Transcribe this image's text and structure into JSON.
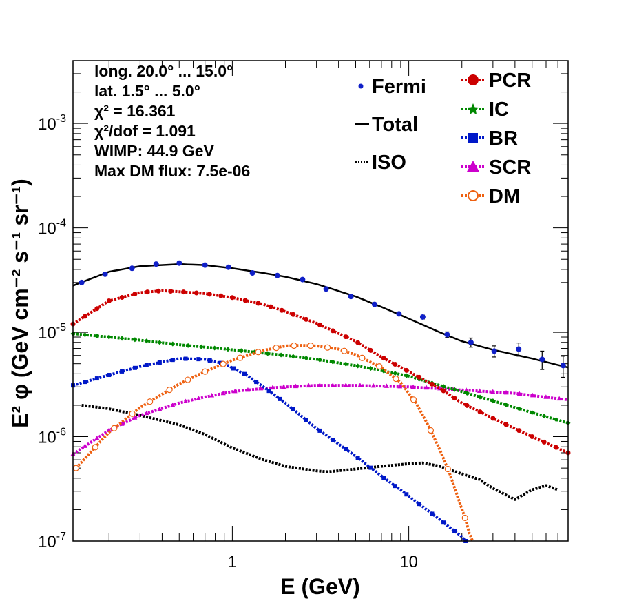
{
  "chart_data": {
    "type": "line",
    "xlabel": "E (GeV)",
    "ylabel": "E² φ (GeV cm⁻² s⁻¹ sr⁻¹)",
    "x_scale": "log",
    "y_scale": "log",
    "xlim": [
      0.125,
      80
    ],
    "ylim": [
      1e-07,
      0.004
    ],
    "x_ticks": [
      {
        "value": 1,
        "label": "1"
      },
      {
        "value": 10,
        "label": "10"
      }
    ],
    "y_ticks": [
      {
        "value": 1e-07,
        "base": "10",
        "exp": "-7"
      },
      {
        "value": 1e-06,
        "base": "10",
        "exp": "-6"
      },
      {
        "value": 1e-05,
        "base": "10",
        "exp": "-5"
      },
      {
        "value": 0.0001,
        "base": "10",
        "exp": "-4"
      },
      {
        "value": 0.001,
        "base": "10",
        "exp": "-3"
      }
    ],
    "annotations": [
      "long. 20.0° ... 15.0°",
      "lat. 1.5° ... 5.0°",
      "χ² = 16.361",
      "χ²/dof = 1.091",
      "WIMP: 44.9 GeV",
      "Max DM flux: 7.5e-06"
    ],
    "legend_left": [
      {
        "label": "Fermi",
        "color": "#1020c8",
        "style": "point"
      },
      {
        "label": "Total",
        "color": "#000000",
        "style": "solid"
      },
      {
        "label": "ISO",
        "color": "#000000",
        "style": "dotted"
      }
    ],
    "legend_right": [
      {
        "label": "PCR",
        "color": "#cc0000",
        "marker": "circle"
      },
      {
        "label": "IC",
        "color": "#008800",
        "marker": "star"
      },
      {
        "label": "BR",
        "color": "#0018c8",
        "marker": "square"
      },
      {
        "label": "SCR",
        "color": "#cc00cc",
        "marker": "triangle"
      },
      {
        "label": "DM",
        "color": "#ee6010",
        "marker": "open-circle"
      }
    ],
    "fermi": {
      "x": [
        0.14,
        0.19,
        0.27,
        0.37,
        0.5,
        0.7,
        0.95,
        1.3,
        1.8,
        2.5,
        3.4,
        4.7,
        6.4,
        8.8,
        12,
        16.5,
        22.5,
        30.5,
        42,
        57,
        75
      ],
      "y": [
        3e-05,
        3.6e-05,
        4.1e-05,
        4.5e-05,
        4.6e-05,
        4.4e-05,
        4.2e-05,
        3.7e-05,
        3.5e-05,
        3.2e-05,
        2.6e-05,
        2.2e-05,
        1.85e-05,
        1.5e-05,
        1.4e-05,
        9.5e-06,
        8e-06,
        6.6e-06,
        6.9e-06,
        5.5e-06,
        4.8e-06
      ],
      "err_lo": [
        2.96e-05,
        3.56e-05,
        4.06e-05,
        4.46e-05,
        4.56e-05,
        4.36e-05,
        4.16e-05,
        3.66e-05,
        3.46e-05,
        3.15e-05,
        2.55e-05,
        2.15e-05,
        1.8e-05,
        1.45e-05,
        1.34e-05,
        8.9e-06,
        7.2e-06,
        5.8e-06,
        5.9e-06,
        4.4e-06,
        3.7e-06
      ],
      "err_hi": [
        3.04e-05,
        3.64e-05,
        4.14e-05,
        4.54e-05,
        4.64e-05,
        4.44e-05,
        4.24e-05,
        3.74e-05,
        3.54e-05,
        3.25e-05,
        2.65e-05,
        2.25e-05,
        1.9e-05,
        1.55e-05,
        1.46e-05,
        1.01e-05,
        8.8e-06,
        7.4e-06,
        7.9e-06,
        6.6e-06,
        5.9e-06
      ]
    },
    "series": [
      {
        "key": "total",
        "color": "#000000",
        "x": [
          0.125,
          0.2,
          0.3,
          0.5,
          0.7,
          1.0,
          1.5,
          2.0,
          3.0,
          5.0,
          7.0,
          10,
          15,
          20,
          30,
          50,
          80
        ],
        "y": [
          2.8e-05,
          3.8e-05,
          4.3e-05,
          4.5e-05,
          4.4e-05,
          4.1e-05,
          3.7e-05,
          3.4e-05,
          2.9e-05,
          2.2e-05,
          1.75e-05,
          1.35e-05,
          1e-05,
          8.2e-06,
          6.8e-06,
          5.6e-06,
          4.6e-06
        ]
      },
      {
        "key": "pcr",
        "color": "#cc0000",
        "x": [
          0.125,
          0.2,
          0.3,
          0.4,
          0.5,
          0.7,
          1.0,
          1.5,
          2.0,
          3.0,
          5.0,
          7.0,
          10,
          15,
          20,
          30,
          50,
          80
        ],
        "y": [
          1.2e-05,
          2e-05,
          2.4e-05,
          2.5e-05,
          2.45e-05,
          2.35e-05,
          2.15e-05,
          1.85e-05,
          1.58e-05,
          1.22e-05,
          8.2e-06,
          5.8e-06,
          4.2e-06,
          2.9e-06,
          2.1e-06,
          1.5e-06,
          1e-06,
          7e-07
        ]
      },
      {
        "key": "ic",
        "color": "#008800",
        "x": [
          0.125,
          0.2,
          0.3,
          0.5,
          1.0,
          2.0,
          3.0,
          5.0,
          7.0,
          10,
          15,
          20,
          30,
          50,
          80
        ],
        "y": [
          9.7e-06,
          9e-06,
          8.4e-06,
          7.6e-06,
          6.8e-06,
          6e-06,
          5.5e-06,
          4.8e-06,
          4.3e-06,
          3.8e-06,
          3.1e-06,
          2.7e-06,
          2.2e-06,
          1.7e-06,
          1.35e-06
        ]
      },
      {
        "key": "br",
        "color": "#0018c8",
        "x": [
          0.125,
          0.2,
          0.3,
          0.5,
          0.7,
          0.9,
          1.2,
          1.5,
          2.0,
          3.0,
          5.0,
          7.0,
          10,
          15,
          20,
          21
        ],
        "y": [
          3.1e-06,
          3.9e-06,
          4.7e-06,
          5.6e-06,
          5.5e-06,
          5e-06,
          3.9e-06,
          3e-06,
          2.1e-06,
          1.2e-06,
          6.5e-07,
          4.2e-07,
          2.7e-07,
          1.6e-07,
          1.1e-07,
          1e-07
        ]
      },
      {
        "key": "scr",
        "color": "#cc00cc",
        "x": [
          0.125,
          0.2,
          0.3,
          0.5,
          0.7,
          1.0,
          1.5,
          2.0,
          3.0,
          5.0,
          10,
          20,
          40,
          80
        ],
        "y": [
          6.8e-07,
          1.15e-06,
          1.6e-06,
          2.1e-06,
          2.4e-06,
          2.7e-06,
          2.9e-06,
          3e-06,
          3.1e-06,
          3.1e-06,
          3e-06,
          2.8e-06,
          2.6e-06,
          2.25e-06
        ]
      },
      {
        "key": "dm",
        "color": "#ee6010",
        "x": [
          0.13,
          0.2,
          0.3,
          0.5,
          0.7,
          1.0,
          1.5,
          2.0,
          2.5,
          3.0,
          4.0,
          5.0,
          7.0,
          9.0,
          11,
          13,
          15,
          17,
          19,
          21,
          22,
          23
        ],
        "y": [
          5e-07,
          1.1e-06,
          1.9e-06,
          3.2e-06,
          4.2e-06,
          5.4e-06,
          6.7e-06,
          7.4e-06,
          7.5e-06,
          7.4e-06,
          6.9e-06,
          6.1e-06,
          4.6e-06,
          3.3e-06,
          2.1e-06,
          1.25e-06,
          7.5e-07,
          4.5e-07,
          2.6e-07,
          1.6e-07,
          1.2e-07,
          1e-07
        ]
      },
      {
        "key": "iso",
        "color": "#000000",
        "x": [
          0.14,
          0.2,
          0.3,
          0.5,
          0.7,
          1.0,
          1.5,
          2.0,
          3.0,
          3.5,
          5.0,
          7.0,
          10,
          12,
          15,
          20,
          25,
          30,
          35,
          40,
          50,
          60,
          70
        ],
        "y": [
          2e-06,
          1.85e-06,
          1.6e-06,
          1.3e-06,
          1.05e-06,
          7.8e-07,
          6e-07,
          5.2e-07,
          4.7e-07,
          4.6e-07,
          4.9e-07,
          5.2e-07,
          5.5e-07,
          5.6e-07,
          5.2e-07,
          4.4e-07,
          3.9e-07,
          3.2e-07,
          2.8e-07,
          2.5e-07,
          3.1e-07,
          3.4e-07,
          3.1e-07
        ]
      }
    ]
  }
}
